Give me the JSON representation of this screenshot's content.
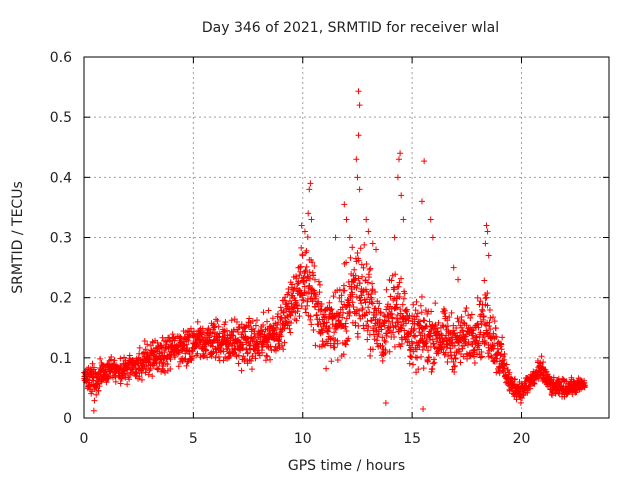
{
  "chart_data": {
    "type": "scatter",
    "title": "Day 346 of 2021, SRMTID for receiver wlal",
    "xlabel": "GPS time / hours",
    "ylabel": "SRMTID / TECUs",
    "xlim": [
      0,
      24
    ],
    "ylim": [
      0,
      0.6
    ],
    "xticks": [
      0,
      5,
      10,
      15,
      20
    ],
    "yticks": [
      0,
      0.1,
      0.2,
      0.3,
      0.4,
      0.5,
      0.6
    ],
    "xtick_labels": [
      "0",
      "5",
      "10",
      "15",
      "20"
    ],
    "ytick_labels": [
      "0",
      "0.1",
      "0.2",
      "0.3",
      "0.4",
      "0.5",
      "0.6"
    ],
    "grid": true,
    "marker": "+",
    "color": "#ff0000",
    "series": [
      {
        "name": "SRMTID",
        "profile": [
          {
            "x": 0.0,
            "lo": 0.04,
            "hi": 0.1
          },
          {
            "x": 0.5,
            "lo": 0.02,
            "hi": 0.1
          },
          {
            "x": 1.0,
            "lo": 0.05,
            "hi": 0.11
          },
          {
            "x": 2.0,
            "lo": 0.05,
            "hi": 0.11
          },
          {
            "x": 3.0,
            "lo": 0.06,
            "hi": 0.14
          },
          {
            "x": 4.0,
            "lo": 0.07,
            "hi": 0.15
          },
          {
            "x": 5.0,
            "lo": 0.08,
            "hi": 0.17
          },
          {
            "x": 6.0,
            "lo": 0.08,
            "hi": 0.18
          },
          {
            "x": 7.0,
            "lo": 0.07,
            "hi": 0.18
          },
          {
            "x": 8.0,
            "lo": 0.07,
            "hi": 0.18
          },
          {
            "x": 9.0,
            "lo": 0.1,
            "hi": 0.2
          },
          {
            "x": 9.8,
            "lo": 0.15,
            "hi": 0.28
          },
          {
            "x": 10.3,
            "lo": 0.13,
            "hi": 0.34
          },
          {
            "x": 11.0,
            "lo": 0.07,
            "hi": 0.22
          },
          {
            "x": 11.8,
            "lo": 0.07,
            "hi": 0.26
          },
          {
            "x": 12.5,
            "lo": 0.08,
            "hi": 0.35
          },
          {
            "x": 13.0,
            "lo": 0.09,
            "hi": 0.3
          },
          {
            "x": 13.6,
            "lo": 0.07,
            "hi": 0.2
          },
          {
            "x": 14.3,
            "lo": 0.09,
            "hi": 0.3
          },
          {
            "x": 15.0,
            "lo": 0.06,
            "hi": 0.2
          },
          {
            "x": 15.5,
            "lo": 0.05,
            "hi": 0.22
          },
          {
            "x": 16.3,
            "lo": 0.07,
            "hi": 0.2
          },
          {
            "x": 17.0,
            "lo": 0.06,
            "hi": 0.19
          },
          {
            "x": 17.8,
            "lo": 0.08,
            "hi": 0.2
          },
          {
            "x": 18.4,
            "lo": 0.07,
            "hi": 0.25
          },
          {
            "x": 19.0,
            "lo": 0.05,
            "hi": 0.16
          },
          {
            "x": 19.5,
            "lo": 0.03,
            "hi": 0.08
          },
          {
            "x": 20.0,
            "lo": 0.02,
            "hi": 0.07
          },
          {
            "x": 20.5,
            "lo": 0.04,
            "hi": 0.09
          },
          {
            "x": 20.9,
            "lo": 0.05,
            "hi": 0.11
          },
          {
            "x": 21.4,
            "lo": 0.03,
            "hi": 0.07
          },
          {
            "x": 22.0,
            "lo": 0.03,
            "hi": 0.07
          },
          {
            "x": 22.8,
            "lo": 0.04,
            "hi": 0.07
          }
        ],
        "x_end": 22.9,
        "n_points": 2300,
        "outliers": [
          {
            "x": 12.55,
            "y": 0.543
          },
          {
            "x": 12.6,
            "y": 0.52
          },
          {
            "x": 12.55,
            "y": 0.47
          },
          {
            "x": 12.45,
            "y": 0.43
          },
          {
            "x": 12.5,
            "y": 0.4
          },
          {
            "x": 12.6,
            "y": 0.38
          },
          {
            "x": 14.45,
            "y": 0.44
          },
          {
            "x": 14.4,
            "y": 0.43
          },
          {
            "x": 14.35,
            "y": 0.4
          },
          {
            "x": 14.5,
            "y": 0.37
          },
          {
            "x": 14.6,
            "y": 0.33
          },
          {
            "x": 15.55,
            "y": 0.427
          },
          {
            "x": 15.45,
            "y": 0.36
          },
          {
            "x": 15.85,
            "y": 0.33
          },
          {
            "x": 15.95,
            "y": 0.3
          },
          {
            "x": 10.35,
            "y": 0.39
          },
          {
            "x": 10.3,
            "y": 0.38
          },
          {
            "x": 10.25,
            "y": 0.34
          },
          {
            "x": 10.4,
            "y": 0.33
          },
          {
            "x": 10.1,
            "y": 0.31
          },
          {
            "x": 9.95,
            "y": 0.32
          },
          {
            "x": 11.9,
            "y": 0.355
          },
          {
            "x": 12.0,
            "y": 0.33
          },
          {
            "x": 12.15,
            "y": 0.3
          },
          {
            "x": 12.9,
            "y": 0.33
          },
          {
            "x": 13.0,
            "y": 0.31
          },
          {
            "x": 13.2,
            "y": 0.29
          },
          {
            "x": 13.35,
            "y": 0.28
          },
          {
            "x": 14.2,
            "y": 0.3
          },
          {
            "x": 18.4,
            "y": 0.32
          },
          {
            "x": 18.45,
            "y": 0.31
          },
          {
            "x": 18.35,
            "y": 0.29
          },
          {
            "x": 18.5,
            "y": 0.27
          },
          {
            "x": 16.9,
            "y": 0.25
          },
          {
            "x": 17.1,
            "y": 0.23
          },
          {
            "x": 11.5,
            "y": 0.3
          },
          {
            "x": 13.8,
            "y": 0.025
          },
          {
            "x": 15.5,
            "y": 0.015
          },
          {
            "x": 0.45,
            "y": 0.012
          }
        ]
      }
    ]
  }
}
